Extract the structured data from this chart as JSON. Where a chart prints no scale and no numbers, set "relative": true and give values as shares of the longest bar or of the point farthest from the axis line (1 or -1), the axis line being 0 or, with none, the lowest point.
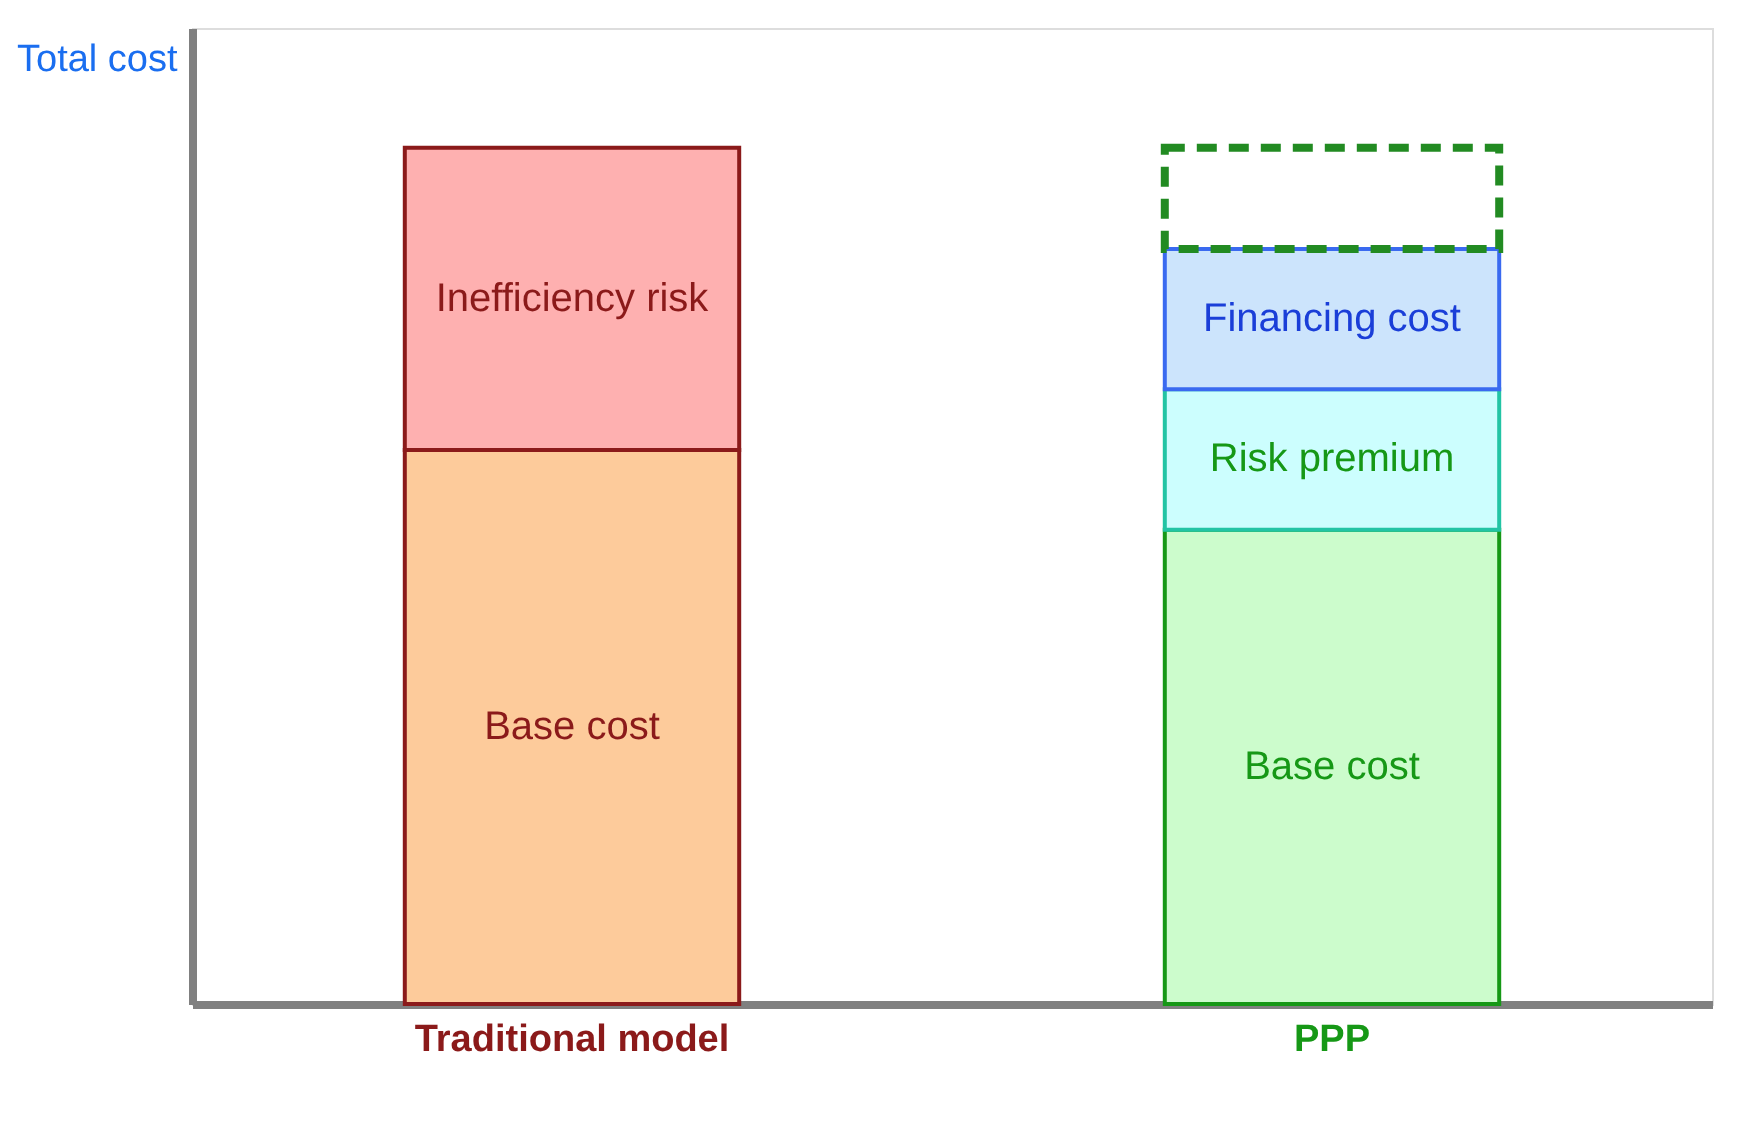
{
  "chart_data": {
    "type": "bar",
    "relative": true,
    "stacked": true,
    "ylabel": "Total cost",
    "tick_labels": "x",
    "grid": false,
    "legend": false,
    "categories": [
      "Traditional model",
      "PPP"
    ],
    "series": [
      {
        "name": "Base cost",
        "colors": [
          "#fdcb9b",
          "#ccfccc"
        ],
        "values": [
          0.647,
          0.554
        ]
      },
      {
        "name": "Inefficiency risk",
        "colors": [
          "#feb0b0",
          null
        ],
        "values": [
          0.353,
          null
        ]
      },
      {
        "name": "Risk premium",
        "colors": [
          null,
          "#ccfefe"
        ],
        "values": [
          null,
          0.164
        ]
      },
      {
        "name": "Financing cost",
        "colors": [
          null,
          "#cce4fc"
        ],
        "values": [
          null,
          0.164
        ]
      },
      {
        "color": "#228b22",
        "line_style": "dashed",
        "values": [
          null,
          0.118
        ]
      }
    ]
  }
}
